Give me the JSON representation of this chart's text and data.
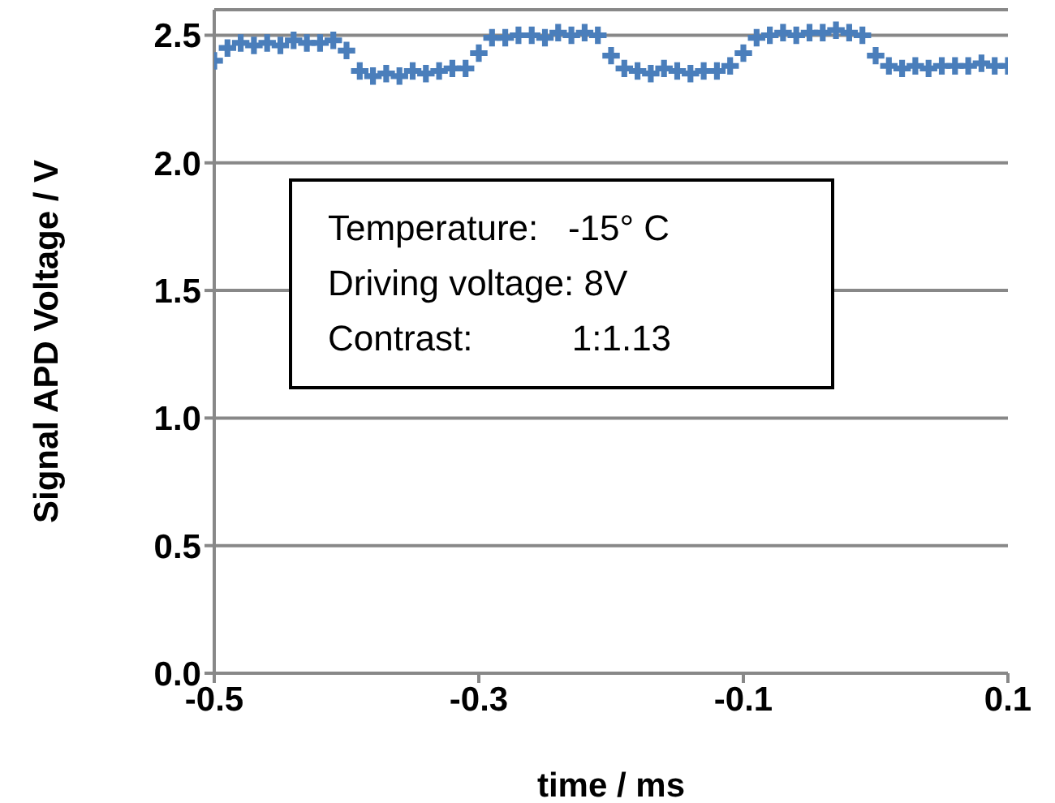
{
  "chart_data": {
    "type": "scatter",
    "xlabel": "time / ms",
    "ylabel": "Signal APD Voltage / V",
    "annotations": [
      "Temperature:   -15° C",
      "Driving voltage: 8V",
      "Contrast:          1:1.13"
    ],
    "x": [
      -0.5,
      -0.49,
      -0.48,
      -0.47,
      -0.46,
      -0.45,
      -0.44,
      -0.43,
      -0.42,
      -0.41,
      -0.4,
      -0.39,
      -0.38,
      -0.37,
      -0.36,
      -0.35,
      -0.34,
      -0.33,
      -0.32,
      -0.31,
      -0.3,
      -0.29,
      -0.28,
      -0.27,
      -0.26,
      -0.25,
      -0.24,
      -0.23,
      -0.22,
      -0.21,
      -0.2,
      -0.19,
      -0.18,
      -0.17,
      -0.16,
      -0.15,
      -0.14,
      -0.13,
      -0.12,
      -0.11,
      -0.1,
      -0.09,
      -0.08,
      -0.07,
      -0.06,
      -0.05,
      -0.04,
      -0.03,
      -0.02,
      -0.01,
      0,
      0.01,
      0.02,
      0.03,
      0.04,
      0.05,
      0.06,
      0.07,
      0.08,
      0.09,
      0.1
    ],
    "series": [
      {
        "color": "#4a7ebb",
        "values": [
          2.4,
          2.45,
          2.47,
          2.46,
          2.47,
          2.46,
          2.48,
          2.47,
          2.47,
          2.48,
          2.44,
          2.36,
          2.34,
          2.35,
          2.34,
          2.36,
          2.35,
          2.36,
          2.37,
          2.37,
          2.43,
          2.49,
          2.49,
          2.5,
          2.5,
          2.49,
          2.51,
          2.5,
          2.51,
          2.5,
          2.42,
          2.37,
          2.36,
          2.35,
          2.37,
          2.36,
          2.35,
          2.36,
          2.36,
          2.38,
          2.43,
          2.49,
          2.5,
          2.51,
          2.5,
          2.51,
          2.51,
          2.52,
          2.51,
          2.5,
          2.42,
          2.38,
          2.37,
          2.38,
          2.37,
          2.38,
          2.38,
          2.38,
          2.39,
          2.38,
          2.38
        ]
      }
    ],
    "xlim": [
      -0.5,
      0.1
    ],
    "xticks": [
      -0.5,
      -0.3,
      -0.1,
      0.1
    ],
    "ylim": [
      0,
      2.6
    ],
    "yticks": [
      {
        "value": 0,
        "label": "0.0"
      },
      {
        "value": 0.5,
        "label": "0.5"
      },
      {
        "value": 1,
        "label": "1.0"
      },
      {
        "value": 1.5,
        "label": "1.5"
      },
      {
        "value": 2,
        "label": "2.0"
      },
      {
        "value": 2.5,
        "label": "2.5"
      }
    ],
    "grid": "y",
    "marker": "cross",
    "legend": false
  }
}
